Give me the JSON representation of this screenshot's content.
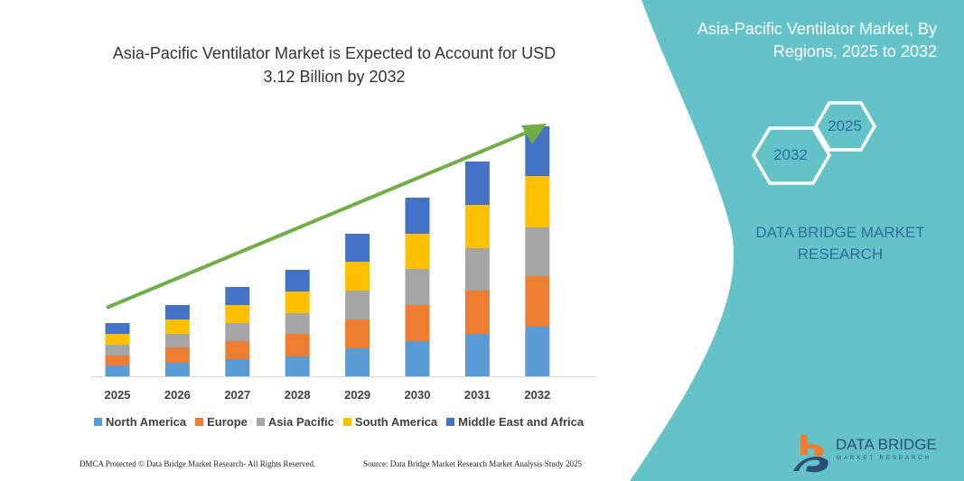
{
  "chart_data": {
    "type": "bar",
    "stacked": true,
    "title": "Asia-Pacific Ventilator Market is Expected to Account for USD 3.12 Billion by 2032",
    "categories": [
      "2025",
      "2026",
      "2027",
      "2028",
      "2029",
      "2030",
      "2031",
      "2032"
    ],
    "series": [
      {
        "name": "North America",
        "color": "#5B9BD5",
        "values": [
          12,
          15,
          19,
          22,
          31,
          39,
          47,
          55
        ]
      },
      {
        "name": "Europe",
        "color": "#ED7D31",
        "values": [
          11,
          17,
          20,
          25,
          32,
          40,
          48,
          56
        ]
      },
      {
        "name": "Asia Pacific",
        "color": "#A5A5A5",
        "values": [
          12,
          15,
          20,
          23,
          32,
          40,
          47,
          54
        ]
      },
      {
        "name": "South America",
        "color": "#FFC000",
        "values": [
          12,
          16,
          20,
          24,
          32,
          39,
          48,
          57
        ]
      },
      {
        "name": "Middle East and Africa",
        "color": "#4472C4",
        "values": [
          12,
          16,
          20,
          24,
          31,
          40,
          48,
          55
        ]
      }
    ],
    "xlabel": "",
    "ylabel": "",
    "grid": false,
    "legend": "bottom",
    "trend_arrow_color": "#70AD47"
  },
  "side": {
    "title_line1": "Asia-Pacific Ventilator Market, By",
    "title_line2": "Regions, 2025 to 2032",
    "hex_start": "2025",
    "hex_end": "2032",
    "brand_line1": "DATA BRIDGE MARKET",
    "brand_line2": "RESEARCH",
    "panel_color": "#63C3C8"
  },
  "footer": {
    "left": "DMCA Protected © Data Bridge Market Research-  All Rights Reserved.",
    "right": "Source: Data Bridge Market Research  Market Analysis Study 2025"
  },
  "logo": {
    "name": "DATA BRIDGE",
    "sub": "MARKET RESEARCH"
  }
}
